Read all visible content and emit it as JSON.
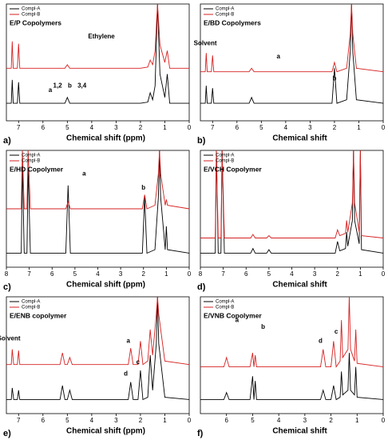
{
  "chart_data": [
    {
      "type": "line",
      "panel_label": "a)",
      "title": "E/P Copolymers",
      "xlabel": "Chemical shift (ppm)",
      "xlim": [
        7.5,
        0
      ],
      "xticks": [
        7,
        6,
        5,
        4,
        3,
        2,
        1,
        0
      ],
      "ylim": [
        0,
        100
      ],
      "series": [
        {
          "name": "Compl-A",
          "color": "#000000",
          "x": [
            7.5,
            7.3,
            7.26,
            7.22,
            7.05,
            7.0,
            6.95,
            5.1,
            5.0,
            4.9,
            2.0,
            1.7,
            1.6,
            1.5,
            1.4,
            1.3,
            1.2,
            1.0,
            0.9,
            0.8,
            0
          ],
          "values": [
            15,
            15,
            35,
            15,
            15,
            33,
            15,
            15,
            20,
            15,
            15,
            16,
            24,
            18,
            30,
            100,
            40,
            20,
            40,
            15,
            15
          ]
        },
        {
          "name": "Compl-B",
          "color": "#d62020",
          "x": [
            7.5,
            7.3,
            7.26,
            7.22,
            7.05,
            7.0,
            6.95,
            5.1,
            5.0,
            4.9,
            2.0,
            1.7,
            1.6,
            1.5,
            1.4,
            1.3,
            1.2,
            1.0,
            0.9,
            0.8,
            0
          ],
          "values": [
            45,
            45,
            68,
            45,
            45,
            66,
            45,
            45,
            48,
            45,
            45,
            46,
            52,
            48,
            60,
            100,
            65,
            50,
            60,
            45,
            45
          ]
        }
      ],
      "annotations": [
        {
          "text": "Ethylene",
          "x": 3.6,
          "y": 72
        },
        {
          "text": "1,2",
          "x": 5.4,
          "y": 30
        },
        {
          "text": "3,4",
          "x": 4.4,
          "y": 30
        },
        {
          "text": "a",
          "x": 5.7,
          "y": 26
        },
        {
          "text": "b",
          "x": 4.9,
          "y": 30
        }
      ]
    },
    {
      "type": "line",
      "panel_label": "b)",
      "title": "E/BD Copolymers",
      "xlabel": "Chemical shift",
      "xlim": [
        7.5,
        0
      ],
      "xticks": [
        7,
        6,
        5,
        4,
        3,
        2,
        1,
        0
      ],
      "ylim": [
        0,
        100
      ],
      "series": [
        {
          "name": "Compl-A",
          "color": "#000000",
          "x": [
            7.5,
            7.3,
            7.26,
            7.22,
            7.05,
            7.0,
            6.95,
            5.5,
            5.4,
            5.3,
            2.1,
            2.0,
            1.9,
            1.5,
            1.35,
            1.3,
            1.25,
            1.1,
            0
          ],
          "values": [
            15,
            15,
            30,
            15,
            15,
            28,
            15,
            15,
            20,
            15,
            15,
            45,
            15,
            18,
            60,
            100,
            60,
            18,
            15
          ]
        },
        {
          "name": "Compl-B",
          "color": "#d62020",
          "x": [
            7.5,
            7.3,
            7.26,
            7.22,
            7.05,
            7.0,
            6.95,
            5.5,
            5.4,
            5.3,
            2.1,
            2.0,
            1.9,
            1.5,
            1.35,
            1.3,
            1.25,
            1.1,
            0
          ],
          "values": [
            42,
            42,
            58,
            42,
            42,
            56,
            42,
            42,
            45,
            42,
            42,
            50,
            42,
            45,
            75,
            100,
            75,
            45,
            42
          ]
        }
      ],
      "annotations": [
        {
          "text": "Solvent",
          "x": 7.3,
          "y": 66
        },
        {
          "text": "a",
          "x": 4.3,
          "y": 55
        },
        {
          "text": "b",
          "x": 2.0,
          "y": 36
        }
      ]
    },
    {
      "type": "line",
      "panel_label": "c)",
      "title": "E/HD Copolymer",
      "xlabel": "Chemical shift (ppm)",
      "xlim": [
        8,
        0
      ],
      "xticks": [
        8,
        7,
        6,
        5,
        4,
        3,
        2,
        1,
        0
      ],
      "ylim": [
        0,
        100
      ],
      "series": [
        {
          "name": "Compl-A",
          "color": "#000000",
          "x": [
            8,
            7.35,
            7.3,
            7.22,
            7.1,
            7.05,
            6.95,
            5.4,
            5.3,
            5.2,
            2.05,
            1.95,
            1.85,
            1.5,
            1.35,
            1.3,
            1.25,
            1.05,
            1.0,
            0.95,
            0
          ],
          "values": [
            12,
            12,
            90,
            12,
            12,
            85,
            12,
            12,
            70,
            12,
            12,
            60,
            12,
            15,
            60,
            100,
            60,
            15,
            35,
            15,
            12
          ]
        },
        {
          "name": "Compl-B",
          "color": "#d62020",
          "x": [
            8,
            7.35,
            7.3,
            7.22,
            7.1,
            7.05,
            6.95,
            5.4,
            5.3,
            5.2,
            2.05,
            1.95,
            1.85,
            1.5,
            1.35,
            1.3,
            1.25,
            1.05,
            1.0,
            0.95,
            0
          ],
          "values": [
            50,
            50,
            100,
            50,
            50,
            100,
            50,
            50,
            56,
            50,
            50,
            62,
            50,
            53,
            80,
            100,
            80,
            53,
            58,
            53,
            50
          ]
        }
      ],
      "annotations": [
        {
          "text": "a",
          "x": 4.6,
          "y": 80
        },
        {
          "text": "b",
          "x": 2.0,
          "y": 68
        }
      ]
    },
    {
      "type": "line",
      "panel_label": "d)",
      "title": "E/VCH Copolymer",
      "xlabel": "Chemical shift",
      "xlim": [
        8,
        0
      ],
      "xticks": [
        8,
        7,
        6,
        5,
        4,
        3,
        2,
        1,
        0
      ],
      "ylim": [
        0,
        100
      ],
      "series": [
        {
          "name": "Compl-A",
          "color": "#000000",
          "x": [
            8,
            7.35,
            7.3,
            7.22,
            7.1,
            7.05,
            6.95,
            5.8,
            5.7,
            5.6,
            5.1,
            5.0,
            4.9,
            2.1,
            2.0,
            1.9,
            1.65,
            1.6,
            1.55,
            1.35,
            1.3,
            1.25,
            1.05,
            1.0,
            0.95,
            0
          ],
          "values": [
            12,
            12,
            100,
            12,
            12,
            100,
            12,
            12,
            16,
            12,
            12,
            15,
            12,
            12,
            22,
            14,
            16,
            30,
            18,
            40,
            100,
            40,
            20,
            100,
            15,
            12
          ]
        },
        {
          "name": "Compl-B",
          "color": "#d62020",
          "x": [
            8,
            7.35,
            7.3,
            7.22,
            7.1,
            7.05,
            6.95,
            5.8,
            5.7,
            5.6,
            5.1,
            5.0,
            4.9,
            2.1,
            2.0,
            1.9,
            1.65,
            1.6,
            1.55,
            1.35,
            1.3,
            1.25,
            1.05,
            1.0,
            0.95,
            0
          ],
          "values": [
            25,
            25,
            100,
            25,
            25,
            100,
            25,
            25,
            28,
            25,
            25,
            27,
            25,
            25,
            32,
            27,
            29,
            40,
            30,
            55,
            100,
            55,
            30,
            100,
            27,
            25
          ]
        }
      ],
      "annotations": []
    },
    {
      "type": "line",
      "panel_label": "e)",
      "title": "E/ENB copolymer",
      "xlabel": "Chemical shift (ppm)",
      "xlim": [
        7.5,
        0
      ],
      "xticks": [
        7,
        6,
        5,
        4,
        3,
        2,
        1,
        0
      ],
      "ylim": [
        0,
        100
      ],
      "series": [
        {
          "name": "Compl-A",
          "color": "#000000",
          "x": [
            7.5,
            7.3,
            7.26,
            7.2,
            7.05,
            7.0,
            6.95,
            5.3,
            5.2,
            5.1,
            5.0,
            4.9,
            4.8,
            2.5,
            2.4,
            2.3,
            2.1,
            2.0,
            1.9,
            1.7,
            1.6,
            1.5,
            1.35,
            1.3,
            1.25,
            1.0,
            0
          ],
          "values": [
            12,
            12,
            22,
            12,
            12,
            20,
            12,
            12,
            24,
            12,
            12,
            20,
            12,
            12,
            27,
            12,
            12,
            37,
            12,
            14,
            50,
            20,
            60,
            100,
            60,
            14,
            12
          ]
        },
        {
          "name": "Compl-B",
          "color": "#d62020",
          "x": [
            7.5,
            7.3,
            7.26,
            7.2,
            7.05,
            7.0,
            6.95,
            5.3,
            5.2,
            5.1,
            5.0,
            4.9,
            4.8,
            2.5,
            2.4,
            2.3,
            2.1,
            2.0,
            1.9,
            1.7,
            1.6,
            1.5,
            1.35,
            1.3,
            1.25,
            1.0,
            0
          ],
          "values": [
            42,
            42,
            55,
            42,
            42,
            54,
            42,
            42,
            52,
            42,
            42,
            48,
            42,
            42,
            56,
            42,
            42,
            62,
            42,
            45,
            72,
            50,
            85,
            100,
            85,
            45,
            42
          ]
        }
      ],
      "annotations": [
        {
          "text": "Solvent",
          "x": 7.4,
          "y": 64
        },
        {
          "text": "a",
          "x": 2.5,
          "y": 62
        },
        {
          "text": "d",
          "x": 2.6,
          "y": 34
        },
        {
          "text": "c",
          "x": 2.1,
          "y": 44
        }
      ]
    },
    {
      "type": "line",
      "panel_label": "f)",
      "title": "E/VNB Copolymer",
      "xlabel": "Chemical shift",
      "xlim": [
        7,
        0
      ],
      "xticks": [
        6,
        5,
        4,
        3,
        2,
        1,
        0
      ],
      "ylim": [
        0,
        100
      ],
      "series": [
        {
          "name": "Compl-A",
          "color": "#000000",
          "x": [
            7,
            6.1,
            6.0,
            5.9,
            5.1,
            5.0,
            4.95,
            4.9,
            4.85,
            2.4,
            2.3,
            2.2,
            2.0,
            1.9,
            1.8,
            1.65,
            1.6,
            1.55,
            1.35,
            1.3,
            1.25,
            1.1,
            1.05,
            1.0,
            0
          ],
          "values": [
            12,
            12,
            18,
            12,
            12,
            32,
            12,
            28,
            12,
            12,
            20,
            12,
            12,
            24,
            12,
            14,
            36,
            16,
            20,
            52,
            20,
            16,
            40,
            14,
            12
          ]
        },
        {
          "name": "Compl-B",
          "color": "#d62020",
          "x": [
            7,
            6.1,
            6.0,
            5.9,
            5.1,
            5.0,
            4.95,
            4.9,
            4.85,
            2.4,
            2.3,
            2.2,
            2.0,
            1.9,
            1.8,
            1.65,
            1.6,
            1.55,
            1.35,
            1.3,
            1.25,
            1.1,
            1.05,
            1.0,
            0
          ],
          "values": [
            40,
            40,
            48,
            40,
            40,
            52,
            40,
            50,
            40,
            40,
            55,
            40,
            40,
            62,
            40,
            45,
            80,
            48,
            55,
            100,
            55,
            45,
            72,
            43,
            40
          ]
        }
      ],
      "annotations": [
        {
          "text": "a",
          "x": 5.6,
          "y": 80
        },
        {
          "text": "b",
          "x": 4.6,
          "y": 74
        },
        {
          "text": "c",
          "x": 1.8,
          "y": 70
        },
        {
          "text": "d",
          "x": 2.4,
          "y": 62
        }
      ]
    }
  ]
}
